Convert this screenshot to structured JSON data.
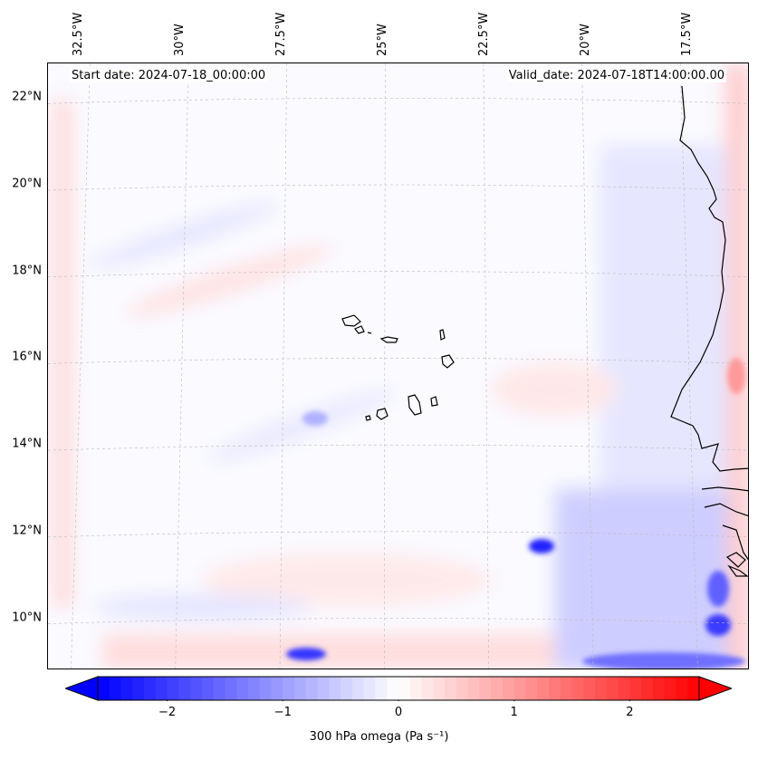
{
  "header": {
    "start_date": "Start date: 2024-07-18_00:00:00",
    "valid_date": "Valid_date: 2024-07-18T14:00:00.00"
  },
  "map": {
    "lat_range": [
      8.8,
      22.8
    ],
    "lon_range": [
      -33.3,
      -16.0
    ],
    "lat_labels": [
      {
        "value": 22,
        "text": "22°N"
      },
      {
        "value": 20,
        "text": "20°N"
      },
      {
        "value": 18,
        "text": "18°N"
      },
      {
        "value": 16,
        "text": "16°N"
      },
      {
        "value": 14,
        "text": "14°N"
      },
      {
        "value": 12,
        "text": "12°N"
      },
      {
        "value": 10,
        "text": "10°N"
      }
    ],
    "lon_labels": [
      {
        "value": -32.5,
        "text": "32.5°W"
      },
      {
        "value": -30,
        "text": "30°W"
      },
      {
        "value": -27.5,
        "text": "27.5°W"
      },
      {
        "value": -25,
        "text": "25°W"
      },
      {
        "value": -22.5,
        "text": "22.5°W"
      },
      {
        "value": -20,
        "text": "20°W"
      },
      {
        "value": -17.5,
        "text": "17.5°W"
      }
    ],
    "gridlines": true,
    "coastline_color": "#000000",
    "field_colors": {
      "negative": "#0000ff",
      "neutral": "#ffffff",
      "positive": "#ff0000"
    }
  },
  "colorbar": {
    "range": [
      -2.6,
      2.6
    ],
    "ticks": [
      {
        "value": -2,
        "text": "−2"
      },
      {
        "value": -1,
        "text": "−1"
      },
      {
        "value": 0,
        "text": "0"
      },
      {
        "value": 1,
        "text": "1"
      },
      {
        "value": 2,
        "text": "2"
      }
    ],
    "label": "300 hPa omega (Pa s⁻¹)",
    "extend": "both"
  }
}
